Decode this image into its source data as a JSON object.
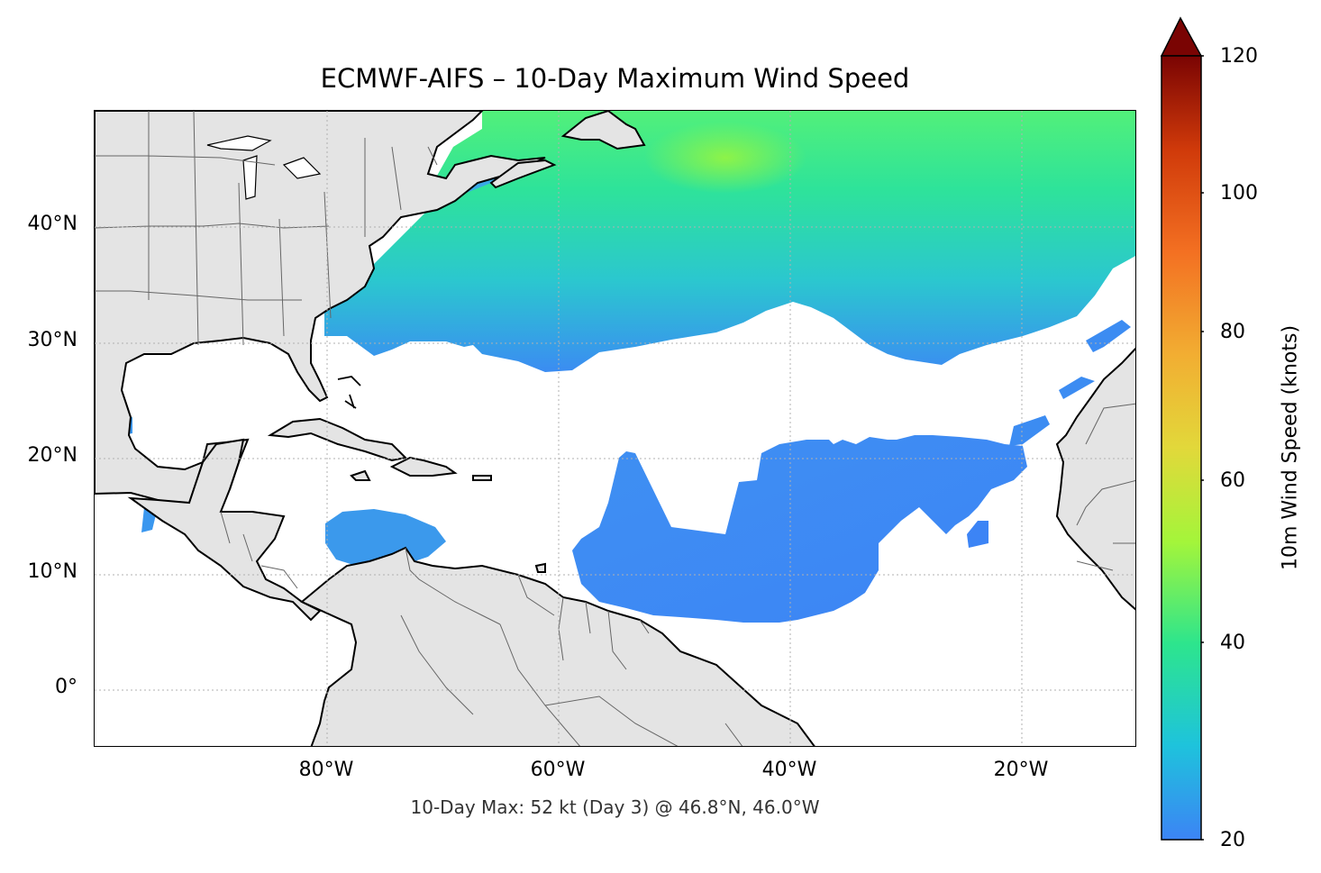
{
  "title": "ECMWF-AIFS – 10-Day Maximum Wind Speed",
  "footnote": "10-Day Max: 52 kt (Day 3) @ 46.8°N, 46.0°W",
  "map": {
    "lat_labels": [
      "40°N",
      "30°N",
      "20°N",
      "10°N",
      "0°"
    ],
    "lon_labels": [
      "80°W",
      "60°W",
      "40°W",
      "20°W"
    ],
    "land_color": "#e4e4e4",
    "coast_color": "#000000",
    "border_color": "#666666",
    "grid": true,
    "gridline_style": "dotted"
  },
  "colorbar": {
    "label": "10m Wind Speed (knots)",
    "tick_labels": [
      "120",
      "100",
      "80",
      "60",
      "40",
      "20"
    ],
    "min": 20,
    "max": 120,
    "extend": "max",
    "colors": [
      "#3c84f5",
      "#1ecde0",
      "#2de58d",
      "#a4f53a",
      "#f2ad32",
      "#e3430d",
      "#7a0403"
    ]
  },
  "chart_data": {
    "type": "heatmap",
    "field": "10m maximum wind speed",
    "units": "knots",
    "peak": {
      "value": 52,
      "day": 3,
      "lat": 46.8,
      "lon": -46.0
    },
    "regions": [
      {
        "area": "North Atlantic north of ~32°N",
        "approx_kt": [
          26,
          45
        ]
      },
      {
        "area": "Tropical Atlantic 6–22°N, 62–20°W",
        "approx_kt": [
          20,
          26
        ]
      },
      {
        "area": "Southern Caribbean",
        "approx_kt": [
          22,
          26
        ]
      }
    ]
  }
}
